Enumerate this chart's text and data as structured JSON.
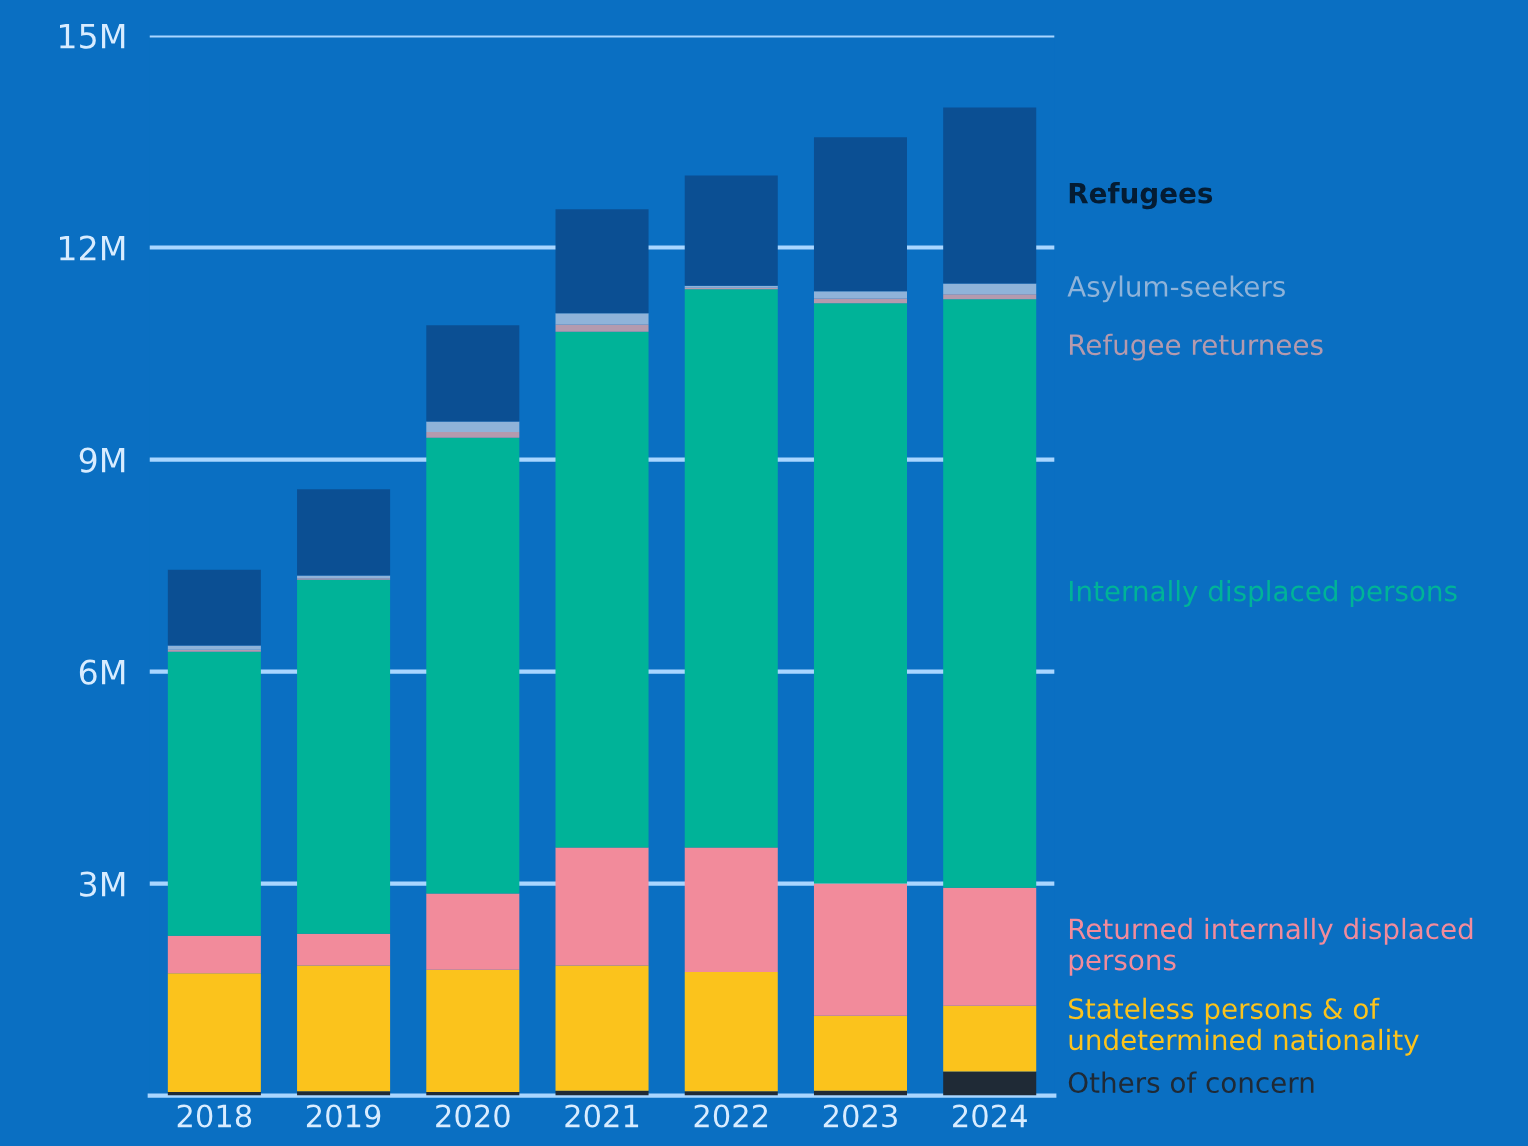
{
  "chart_data": {
    "type": "bar",
    "stacked": true,
    "categories": [
      "2018",
      "2019",
      "2020",
      "2021",
      "2022",
      "2023",
      "2024"
    ],
    "series": [
      {
        "name": "Others of concern",
        "color": "#1f2a36",
        "values": [
          0.05,
          0.06,
          0.05,
          0.07,
          0.06,
          0.07,
          0.34
        ]
      },
      {
        "name": "Stateless persons & of undetermined nationality",
        "color": "#fbc31c",
        "values": [
          1.68,
          1.78,
          1.73,
          1.77,
          1.69,
          1.06,
          0.93
        ]
      },
      {
        "name": "Returned internally displaced persons",
        "color": "#f28b9b",
        "values": [
          0.53,
          0.45,
          1.08,
          1.67,
          1.76,
          1.87,
          1.67
        ]
      },
      {
        "name": "Internally displaced persons",
        "color": "#00b398",
        "values": [
          4.02,
          5.01,
          6.45,
          7.3,
          7.9,
          8.21,
          8.33
        ]
      },
      {
        "name": "Refugee returnees",
        "color": "#b49aae",
        "values": [
          0.03,
          0.02,
          0.08,
          0.1,
          0.02,
          0.07,
          0.07
        ]
      },
      {
        "name": "Asylum-seekers",
        "color": "#8fb3d9",
        "values": [
          0.06,
          0.04,
          0.15,
          0.16,
          0.03,
          0.1,
          0.15
        ]
      },
      {
        "name": "Refugees",
        "color": "#0b4f93",
        "values": [
          1.07,
          1.22,
          1.36,
          1.47,
          1.56,
          2.18,
          2.49
        ]
      }
    ],
    "ylim": [
      0,
      15
    ],
    "yticks": [
      {
        "value": 3,
        "label": "3M"
      },
      {
        "value": 6,
        "label": "6M"
      },
      {
        "value": 9,
        "label": "9M"
      },
      {
        "value": 12,
        "label": "12M"
      },
      {
        "value": 15,
        "label": "15M"
      }
    ],
    "grid": "y",
    "legend": "right"
  }
}
